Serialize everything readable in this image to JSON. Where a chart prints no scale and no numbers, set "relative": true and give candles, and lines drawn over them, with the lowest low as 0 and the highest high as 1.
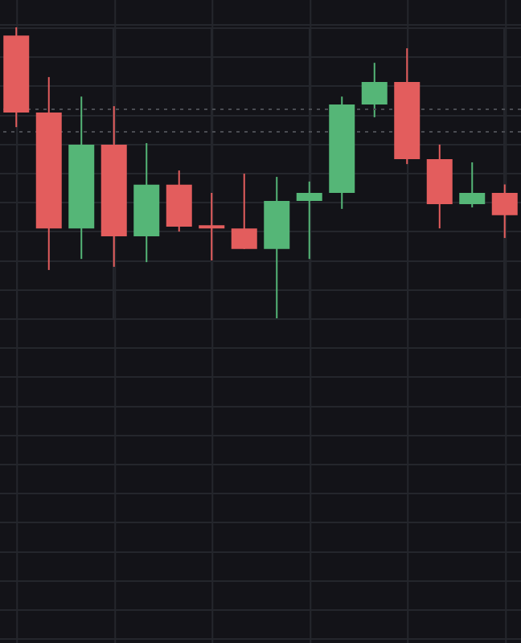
{
  "chart_data": {
    "type": "candlestick",
    "relative": true,
    "grid": true,
    "categories": [
      null,
      null,
      null,
      null,
      null,
      null,
      null,
      null,
      null,
      null,
      null,
      null,
      null,
      null,
      null,
      null
    ],
    "ohlc": [
      [
        0.972,
        1,
        0.657,
        0.707
      ],
      [
        0.707,
        0.829,
        0.166,
        0.309
      ],
      [
        0.309,
        0.762,
        0.204,
        0.597
      ],
      [
        0.597,
        0.729,
        0.177,
        0.282
      ],
      [
        0.282,
        0.602,
        0.193,
        0.459
      ],
      [
        0.459,
        0.508,
        0.298,
        0.315
      ],
      [
        0.32,
        0.431,
        0.199,
        0.309
      ],
      [
        0.309,
        0.497,
        0.238,
        0.238
      ],
      [
        0.238,
        0.486,
        0,
        0.403
      ],
      [
        0.403,
        0.47,
        0.204,
        0.431
      ],
      [
        0.431,
        0.762,
        0.376,
        0.735
      ],
      [
        0.735,
        0.878,
        0.691,
        0.812
      ],
      [
        0.812,
        0.928,
        0.53,
        0.547
      ],
      [
        0.547,
        0.597,
        0.309,
        0.392
      ],
      [
        0.392,
        0.536,
        0.381,
        0.431
      ],
      [
        0.431,
        0.46,
        0.276,
        0.354
      ]
    ],
    "colors": [
      "#e35d5d",
      "#e35d5d",
      "#55b677",
      "#e35d5d",
      "#55b677",
      "#e35d5d",
      "#e35d5d",
      "#e35d5d",
      "#55b677",
      "#55b677",
      "#55b677",
      "#55b677",
      "#e35d5d",
      "#e35d5d",
      "#55b677",
      "#e35d5d"
    ],
    "ref_lines": [
      {
        "axis": "y",
        "value": 0.718,
        "color": "#4a4c52",
        "line_style": "dotted"
      },
      {
        "axis": "y",
        "value": 0.641,
        "color": "#4a4c52",
        "line_style": "dotted"
      }
    ]
  }
}
